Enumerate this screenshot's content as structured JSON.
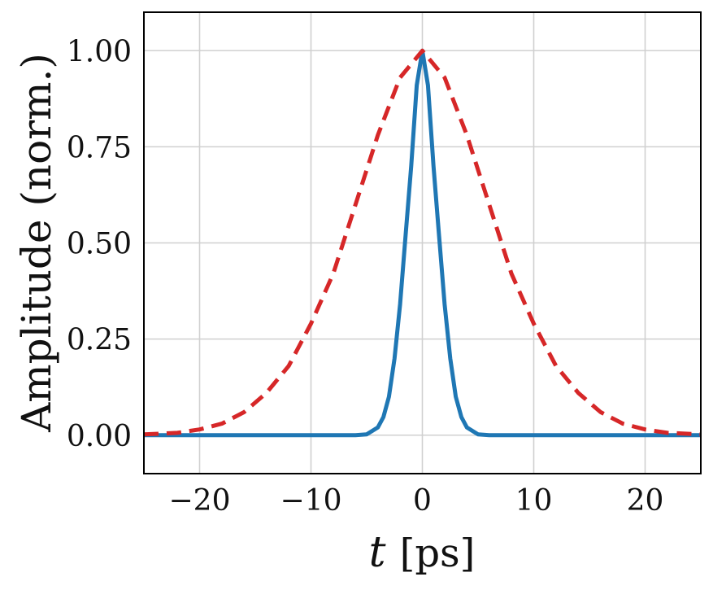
{
  "chart_data": {
    "type": "line",
    "xlabel": "t [ps]",
    "xlabel_var": "t",
    "xlabel_unit": "[ps]",
    "ylabel": "Amplitude (norm.)",
    "xlim": [
      -25,
      25
    ],
    "ylim": [
      -0.1,
      1.1
    ],
    "xticks": [
      -20,
      -10,
      0,
      10,
      20
    ],
    "xtick_labels": [
      "−20",
      "−10",
      "0",
      "10",
      "20"
    ],
    "yticks": [
      0.0,
      0.25,
      0.5,
      0.75,
      1.0
    ],
    "ytick_labels": [
      "0.00",
      "0.25",
      "0.50",
      "0.75",
      "1.00"
    ],
    "grid": true,
    "legend": "none",
    "series": [
      {
        "style": "solid",
        "color": "#1f77b4",
        "x": [
          -25,
          -8,
          -6,
          -5,
          -4,
          -3.5,
          -3,
          -2.5,
          -2,
          -1.5,
          -1,
          -0.5,
          0,
          0.5,
          1,
          1.5,
          2,
          2.5,
          3,
          3.5,
          4,
          5,
          6,
          8,
          25
        ],
        "y": [
          0,
          0,
          0,
          0.002,
          0.02,
          0.047,
          0.1,
          0.2,
          0.34,
          0.52,
          0.7,
          0.91,
          1.0,
          0.91,
          0.7,
          0.52,
          0.34,
          0.2,
          0.1,
          0.047,
          0.02,
          0.002,
          0,
          0,
          0
        ]
      },
      {
        "style": "dashed",
        "color": "#d62728",
        "x": [
          -25,
          -22,
          -20,
          -18,
          -16,
          -14,
          -12,
          -10,
          -8,
          -6,
          -4,
          -2,
          0,
          2,
          4,
          6,
          8,
          10,
          12,
          14,
          16,
          18,
          20,
          22,
          25
        ],
        "y": [
          0.002,
          0.006,
          0.015,
          0.03,
          0.06,
          0.11,
          0.18,
          0.29,
          0.42,
          0.6,
          0.78,
          0.93,
          1.0,
          0.93,
          0.78,
          0.6,
          0.42,
          0.29,
          0.18,
          0.11,
          0.06,
          0.03,
          0.015,
          0.006,
          0.002
        ]
      }
    ]
  }
}
